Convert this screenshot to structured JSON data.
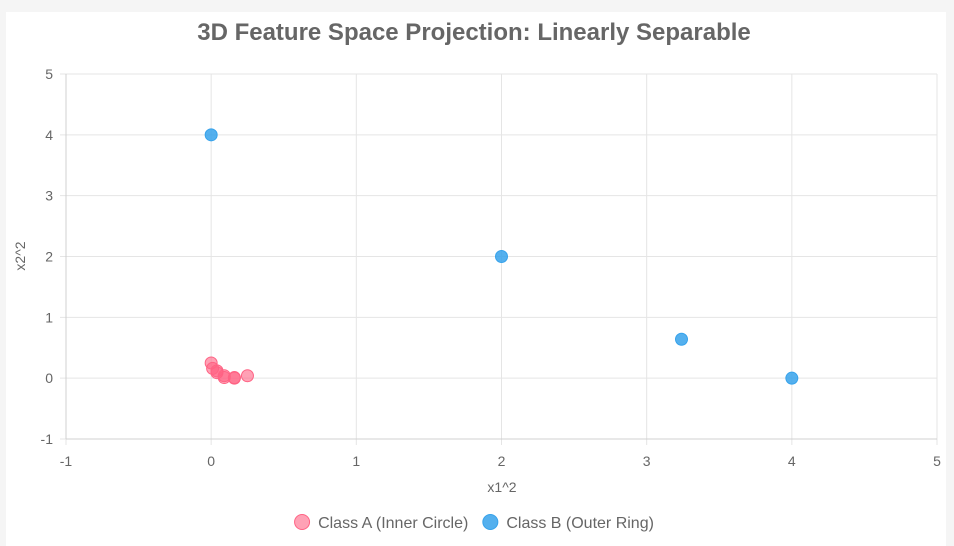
{
  "chart_data": {
    "type": "scatter",
    "title": "3D Feature Space Projection: Linearly Separable",
    "xlabel": "x1^2",
    "ylabel": "x2^2",
    "xlim": [
      -1,
      5
    ],
    "ylim": [
      -1,
      5
    ],
    "xticks": [
      "-1",
      "0",
      "1",
      "2",
      "3",
      "4",
      "5"
    ],
    "yticks": [
      "-1",
      "0",
      "1",
      "2",
      "3",
      "4",
      "5"
    ],
    "grid": true,
    "legend_position": "bottom",
    "series": [
      {
        "name": "Class A (Inner Circle)",
        "color": "#ff6384",
        "fill": "rgba(255, 99, 132, 0.6)",
        "points": [
          {
            "x": 0.0,
            "y": 0.25
          },
          {
            "x": 0.01,
            "y": 0.16
          },
          {
            "x": 0.04,
            "y": 0.12
          },
          {
            "x": 0.04,
            "y": 0.09
          },
          {
            "x": 0.09,
            "y": 0.04
          },
          {
            "x": 0.09,
            "y": 0.01
          },
          {
            "x": 0.16,
            "y": 0.0
          },
          {
            "x": 0.16,
            "y": 0.01
          },
          {
            "x": 0.25,
            "y": 0.04
          }
        ]
      },
      {
        "name": "Class B (Outer Ring)",
        "color": "#36a2eb",
        "fill": "rgba(54, 162, 235, 0.85)",
        "points": [
          {
            "x": 0.0,
            "y": 4.0
          },
          {
            "x": 2.0,
            "y": 2.0
          },
          {
            "x": 3.24,
            "y": 0.64
          },
          {
            "x": 4.0,
            "y": 0.0
          }
        ]
      }
    ]
  }
}
